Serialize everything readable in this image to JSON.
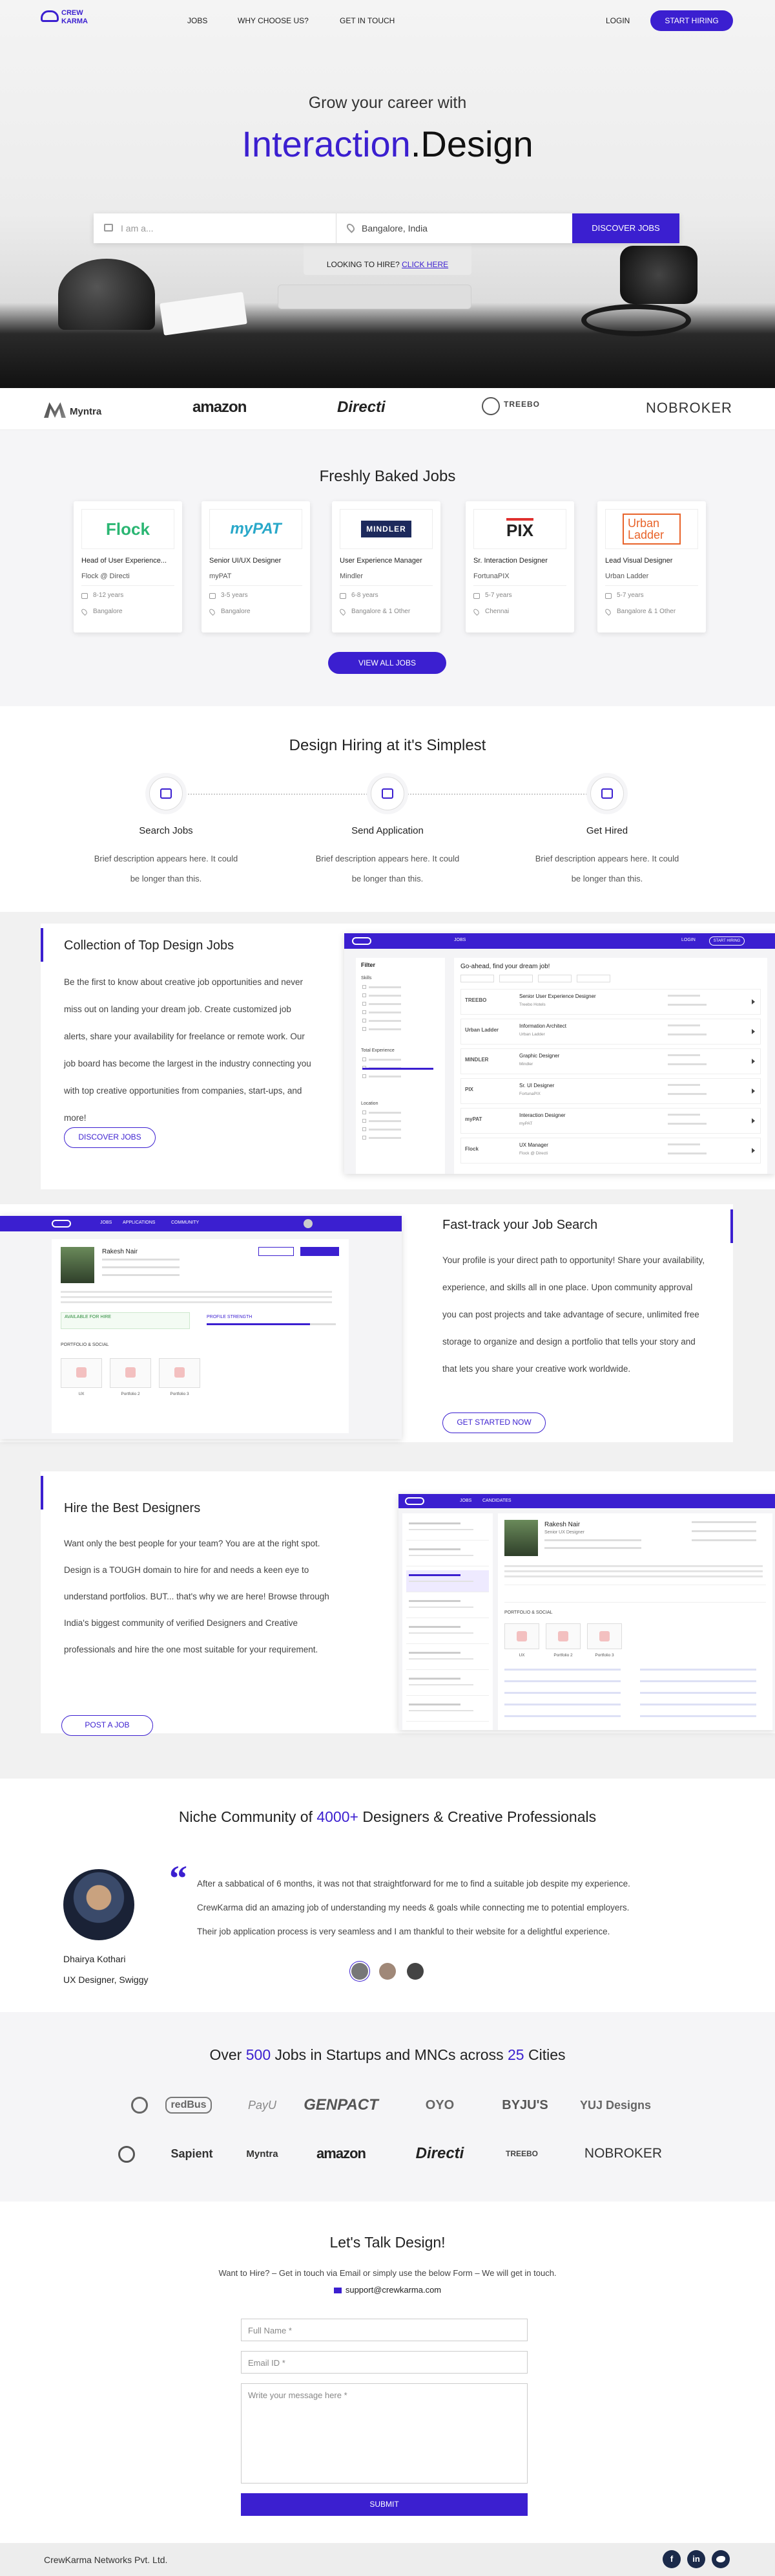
{
  "nav": {
    "logo": [
      "CREW",
      "KARMA"
    ],
    "links": [
      "JOBS",
      "WHY CHOOSE US?",
      "GET IN TOUCH"
    ],
    "login": "LOGIN",
    "cta": "START HIRING"
  },
  "hero": {
    "kicker": "Grow your career with",
    "headline": [
      "Interaction",
      ".Design"
    ],
    "search": {
      "placeholder": "I am a...",
      "location": "Bangalore, India",
      "button": "DISCOVER JOBS"
    },
    "hire": {
      "text": "LOOKING TO HIRE?",
      "link": "CLICK HERE"
    }
  },
  "clients": [
    "Myntra",
    "amazon",
    "Directi",
    "TREEBO",
    "NOBROKER"
  ],
  "jobs": {
    "title": "Freshly Baked Jobs",
    "cards": [
      {
        "logo": "Flock",
        "title": "Head of User Experience...",
        "company": "Flock @ Directi",
        "experience": "8-12 years",
        "location": "Bangalore"
      },
      {
        "logo": "myPAT",
        "title": "Senior UI/UX Designer",
        "company": "myPAT",
        "experience": "3-5 years",
        "location": "Bangalore"
      },
      {
        "logo": "MINDLER",
        "title": "User Experience Manager",
        "company": "Mindler",
        "experience": "6-8 years",
        "location": "Bangalore & 1 Other"
      },
      {
        "logo": "PIX",
        "title": "Sr. Interaction Designer",
        "company": "FortunaPIX",
        "experience": "5-7 years",
        "location": "Chennai"
      },
      {
        "logo": "Urban Ladder",
        "title": "Lead Visual Designer",
        "company": "Urban Ladder",
        "experience": "5-7 years",
        "location": "Bangalore & 1 Other"
      }
    ],
    "button": "VIEW ALL JOBS"
  },
  "steps": {
    "title": "Design Hiring at it's Simplest",
    "items": [
      {
        "label": "Search Jobs",
        "text": "Brief description appears here. It could be longer than this."
      },
      {
        "label": "Send Application",
        "text": "Brief description appears here. It could be longer than this."
      },
      {
        "label": "Get Hired",
        "text": "Brief description appears here. It could be longer than this."
      }
    ]
  },
  "features": [
    {
      "title": "Collection of Top Design Jobs",
      "text": "Be the first to know about creative job opportunities and never miss out on landing your dream job. Create customized job alerts, share your availability for freelance or remote work. Our job board has become the largest in the industry connecting you with top creative opportunities from companies, start-ups, and more!",
      "button": "DISCOVER JOBS"
    },
    {
      "title": "Fast-track your Job Search",
      "text": "Your profile is your direct path to opportunity! Share your availability, experience, and skills all in one place. Upon community approval you can post projects and take advantage of secure, unlimited free storage to organize and design a portfolio that tells your story and that lets you share your creative work worldwide.",
      "button": "GET STARTED NOW"
    },
    {
      "title": "Hire the Best Designers",
      "text": "Want only the best people for your team? You are at the right spot. Design is a TOUGH domain to hire for and needs a keen eye to understand portfolios. BUT... that's why we are here! Browse through India's biggest community of verified Designers and Creative professionals and hire the one most suitable for your requirement.",
      "button": "POST A JOB"
    }
  ],
  "mock_jobs": {
    "nav": [
      "JOBS",
      "LOGIN",
      "START HIRING"
    ],
    "filter": "Filter",
    "groups": [
      "Skills",
      "Total Experience",
      "Location"
    ],
    "heading": "Go-ahead, find your dream job!",
    "rows": [
      {
        "logo": "TREEBO",
        "title": "Senior User Experience Designer",
        "company": "Treebo Hotels"
      },
      {
        "logo": "Urban Ladder",
        "title": "Information Architect",
        "company": "Urban Ladder"
      },
      {
        "logo": "MINDLER",
        "title": "Graphic Designer",
        "company": "Mindler"
      },
      {
        "logo": "PIX",
        "title": "Sr. UI Designer",
        "company": "FortunaPIX"
      },
      {
        "logo": "myPAT",
        "title": "Interaction Designer",
        "company": "myPAT"
      },
      {
        "logo": "Flock",
        "title": "UX Manager",
        "company": "Flock @ Directi"
      }
    ]
  },
  "mock_profile": {
    "nav": [
      "JOBS",
      "APPLICATIONS",
      "COMMUNITY"
    ],
    "name": "Rakesh Nair",
    "available": "AVAILABLE FOR HIRE",
    "strength": "PROFILE STRENGTH",
    "portfolio": "PORTFOLIO & SOCIAL",
    "thumbs": [
      "UX",
      "Portfolio 2",
      "Portfolio 3"
    ]
  },
  "mock_candidates": {
    "nav": [
      "JOBS",
      "CANDIDATES"
    ],
    "name": "Rakesh Nair",
    "role": "Senior UX Designer",
    "portfolio": "PORTFOLIO & SOCIAL",
    "thumbs": [
      "UX",
      "Portfolio 2",
      "Portfolio 3"
    ]
  },
  "testimonial": {
    "title": [
      "Niche Community of ",
      "4000+",
      " Designers & Creative Professionals"
    ],
    "quote": [
      "After a sabbatical of 6 months, it was not that straightforward for me to find a suitable job despite my experience.",
      "CrewKarma did an amazing job of understanding my needs & goals while connecting me to potential employers.",
      "Their job application process is very seamless and I am thankful to their website for a delightful experience."
    ],
    "name": "Dhairya Kothari",
    "role": "UX Designer, Swiggy"
  },
  "companies": {
    "title": [
      "Over ",
      "500",
      " Jobs in Startups and MNCs across ",
      "25",
      " Cities"
    ],
    "rows": [
      [
        "redBus",
        "PayU",
        "GENPACT",
        "OYO",
        "BYJU'S",
        "YUJ Designs"
      ],
      [
        "Sapient",
        "Myntra",
        "amazon",
        "Directi",
        "TREEBO",
        "NOBROKER"
      ]
    ]
  },
  "contact": {
    "title": "Let's Talk Design!",
    "text": "Want to Hire? – Get in touch via Email or simply use the below Form – We will get in touch.",
    "email": "support@crewkarma.com",
    "fields": [
      "Full Name *",
      "Email ID *",
      "Write your message here *"
    ],
    "button": "SUBMIT"
  },
  "footer": {
    "company": "CrewKarma Networks Pvt. Ltd.",
    "social": [
      "f",
      "in"
    ]
  }
}
